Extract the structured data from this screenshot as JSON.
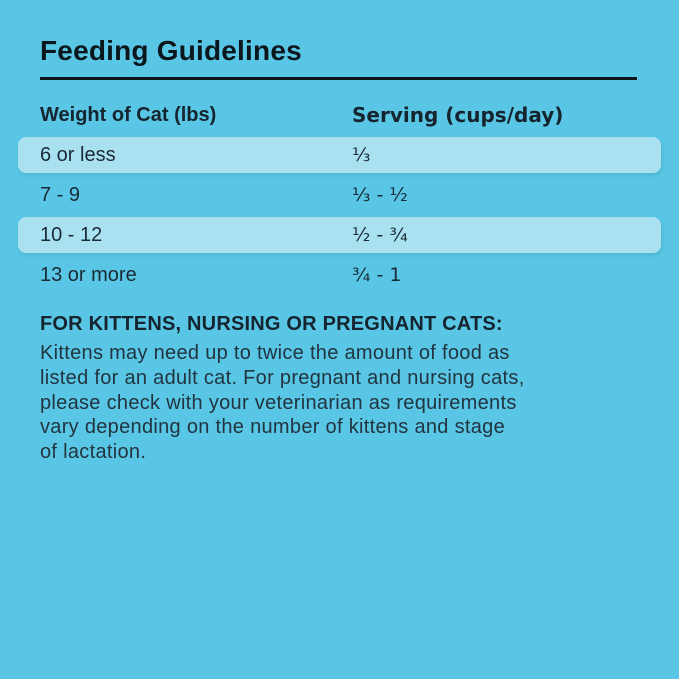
{
  "page": {
    "background_color": "#58C6E4",
    "stripe_color": "#A9E1F1",
    "rule_color": "#0C161D",
    "text_color": "#1A2A34"
  },
  "title": "Feeding Guidelines",
  "table": {
    "columns": {
      "weight": "Weight of Cat (lbs)",
      "serving": "Serving (cups/day)"
    },
    "rows": [
      {
        "weight": "6 or less",
        "serving": "⅓",
        "highlighted": true
      },
      {
        "weight": "7 - 9",
        "serving": "⅓ - ½",
        "highlighted": false
      },
      {
        "weight": "10 - 12",
        "serving": "½ - ¾",
        "highlighted": true
      },
      {
        "weight": "13 or more",
        "serving": "¾ - 1",
        "highlighted": false
      }
    ]
  },
  "note": {
    "heading": "FOR KITTENS, NURSING OR PREGNANT CATS:",
    "body_lines": [
      "Kittens may need up to twice the amount of food as",
      "listed for an adult cat. For pregnant and nursing cats,",
      "please check with your veterinarian as requirements",
      "vary depending on the number of kittens and stage",
      "of lactation."
    ]
  }
}
